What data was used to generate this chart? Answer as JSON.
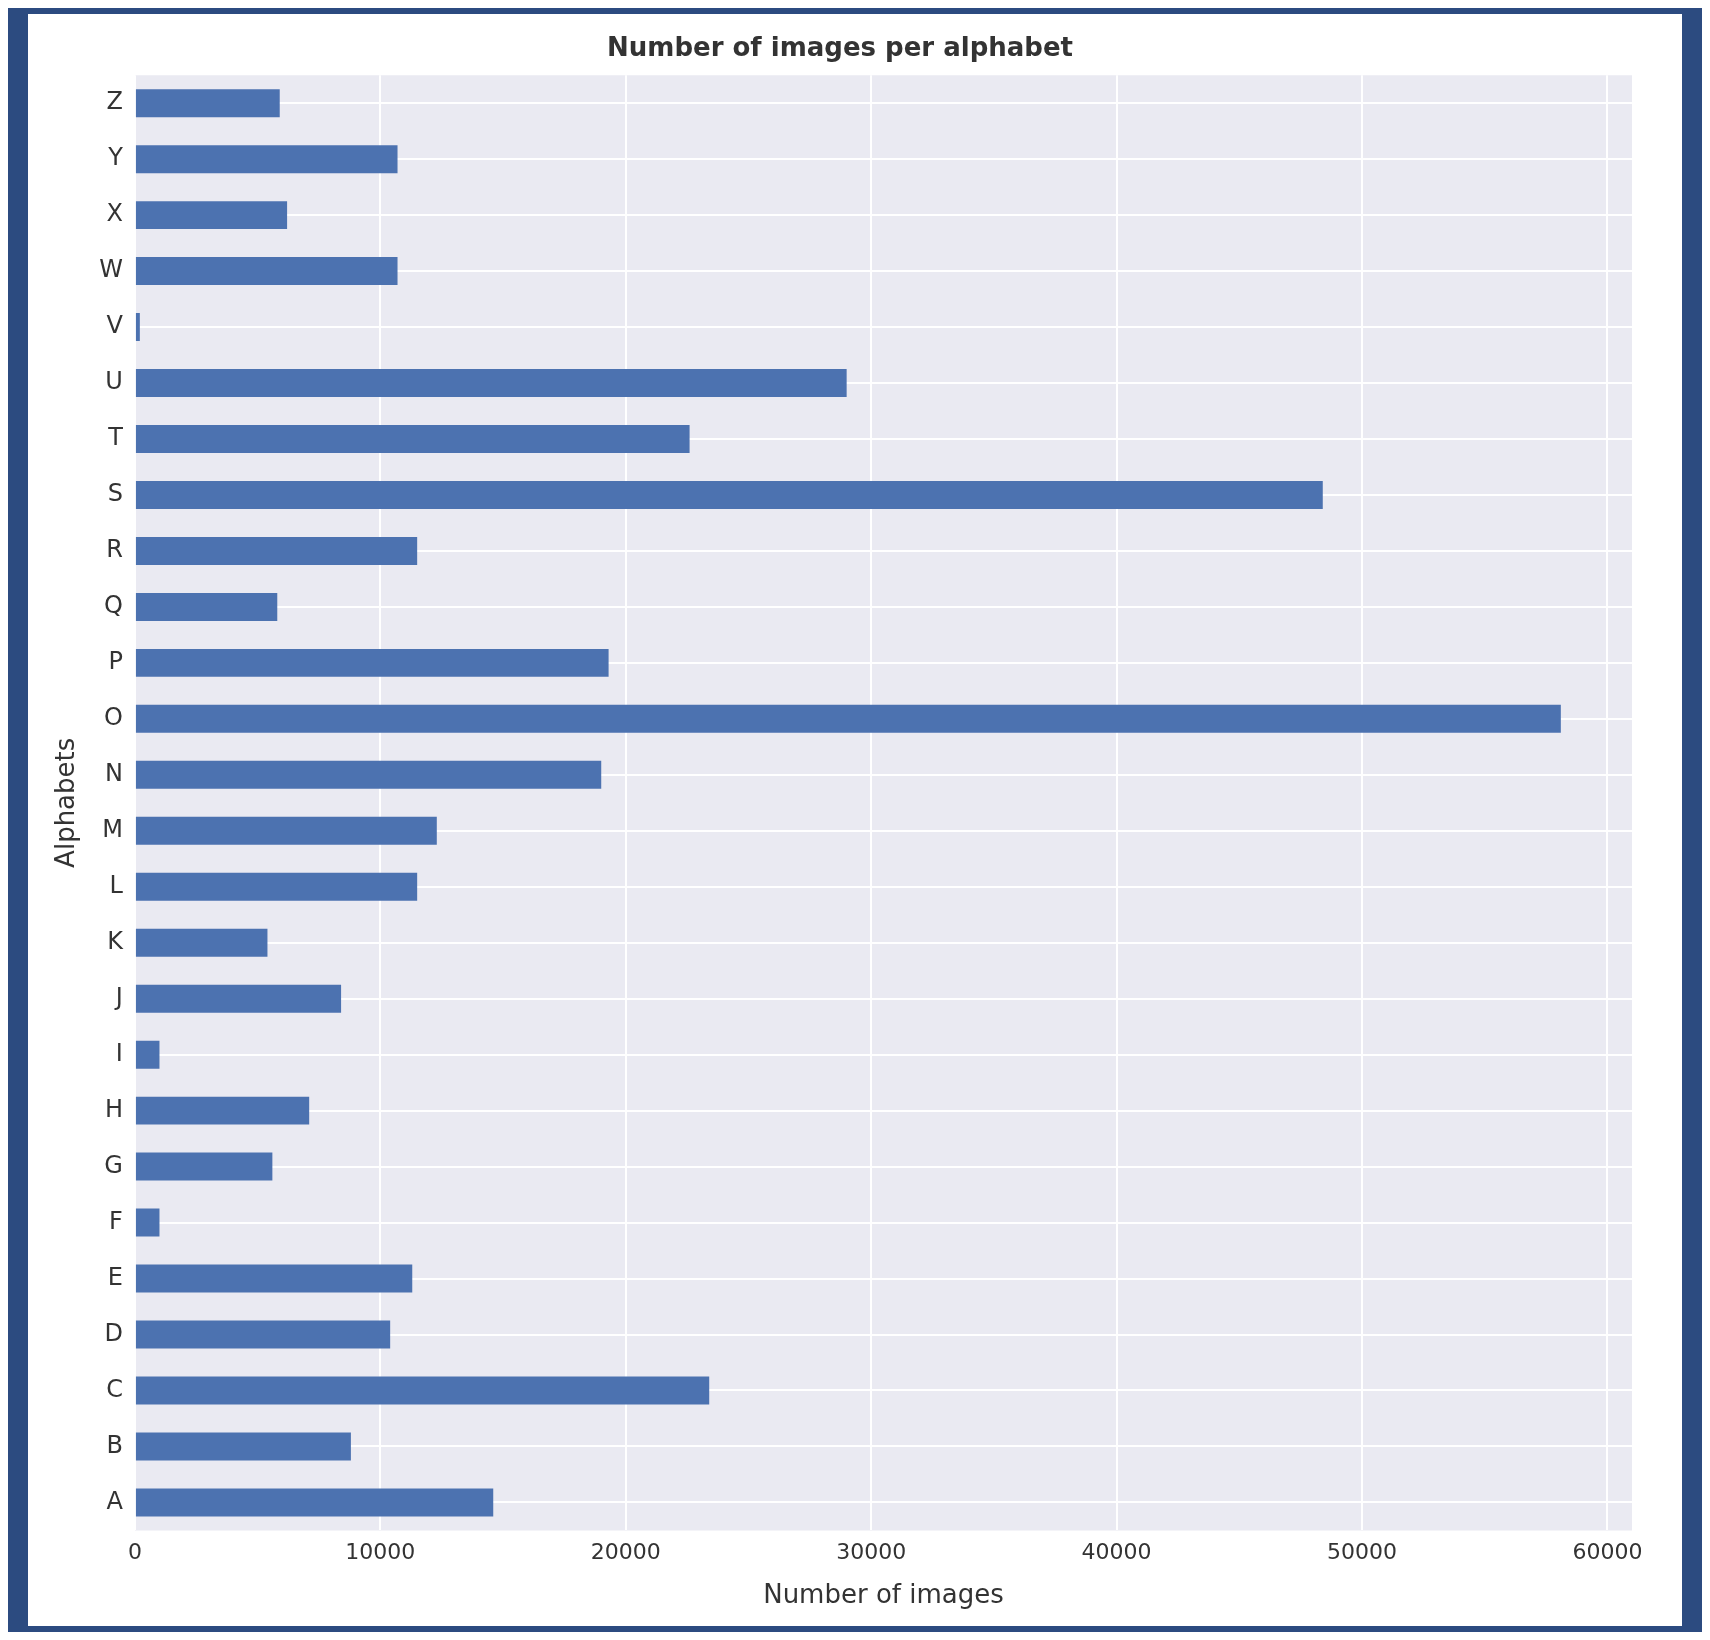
{
  "chart_data": {
    "type": "bar",
    "orientation": "horizontal",
    "title": "Number of images per alphabet",
    "xlabel": "Number of images",
    "ylabel": "Alphabets",
    "categories": [
      "Z",
      "Y",
      "X",
      "W",
      "V",
      "U",
      "T",
      "S",
      "R",
      "Q",
      "P",
      "O",
      "N",
      "M",
      "L",
      "K",
      "J",
      "I",
      "H",
      "G",
      "F",
      "E",
      "D",
      "C",
      "B",
      "A"
    ],
    "values": [
      5900,
      10700,
      6200,
      10700,
      200,
      29000,
      22600,
      48400,
      11500,
      5800,
      19300,
      58100,
      19000,
      12300,
      11500,
      5400,
      8400,
      1000,
      7100,
      5600,
      1000,
      11300,
      10400,
      23400,
      8800,
      14600
    ],
    "color": "#4c72b0",
    "xlim": [
      0,
      61000
    ],
    "xticks": [
      0,
      10000,
      20000,
      30000,
      40000,
      50000,
      60000
    ],
    "grid": true,
    "legend": false
  }
}
